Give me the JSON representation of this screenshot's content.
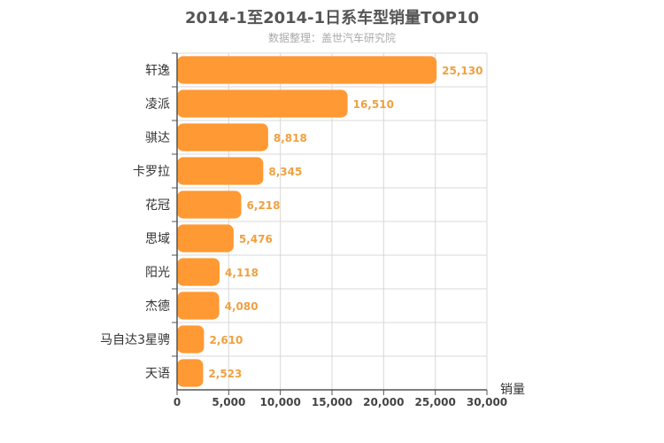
{
  "title": "2014-1至2014-1日系车型销量TOP10",
  "subtitle": "数据整理：盖世汽车研究院",
  "chart_data": {
    "type": "bar",
    "orientation": "horizontal",
    "title": "2014-1至2014-1日系车型销量TOP10",
    "subtitle": "数据整理：盖世汽车研究院",
    "xlabel": "销量",
    "ylabel": "",
    "xlim": [
      0,
      30000
    ],
    "xticks": [
      0,
      5000,
      10000,
      15000,
      20000,
      25000,
      30000
    ],
    "xtick_labels": [
      "0",
      "5,000",
      "10,000",
      "15,000",
      "20,000",
      "25,000",
      "30,000"
    ],
    "grid": true,
    "categories": [
      "轩逸",
      "凌派",
      "骐达",
      "卡罗拉",
      "花冠",
      "思域",
      "阳光",
      "杰德",
      "马自达3星骋",
      "天语"
    ],
    "values": [
      25130,
      16510,
      8818,
      8345,
      6218,
      5476,
      4118,
      4080,
      2610,
      2523
    ],
    "value_labels": [
      "25,130",
      "16,510",
      "8,818",
      "8,345",
      "6,218",
      "5,476",
      "4,118",
      "4,080",
      "2,610",
      "2,523"
    ],
    "bar_color": "#ff9933",
    "label_color": "#f0a040"
  }
}
